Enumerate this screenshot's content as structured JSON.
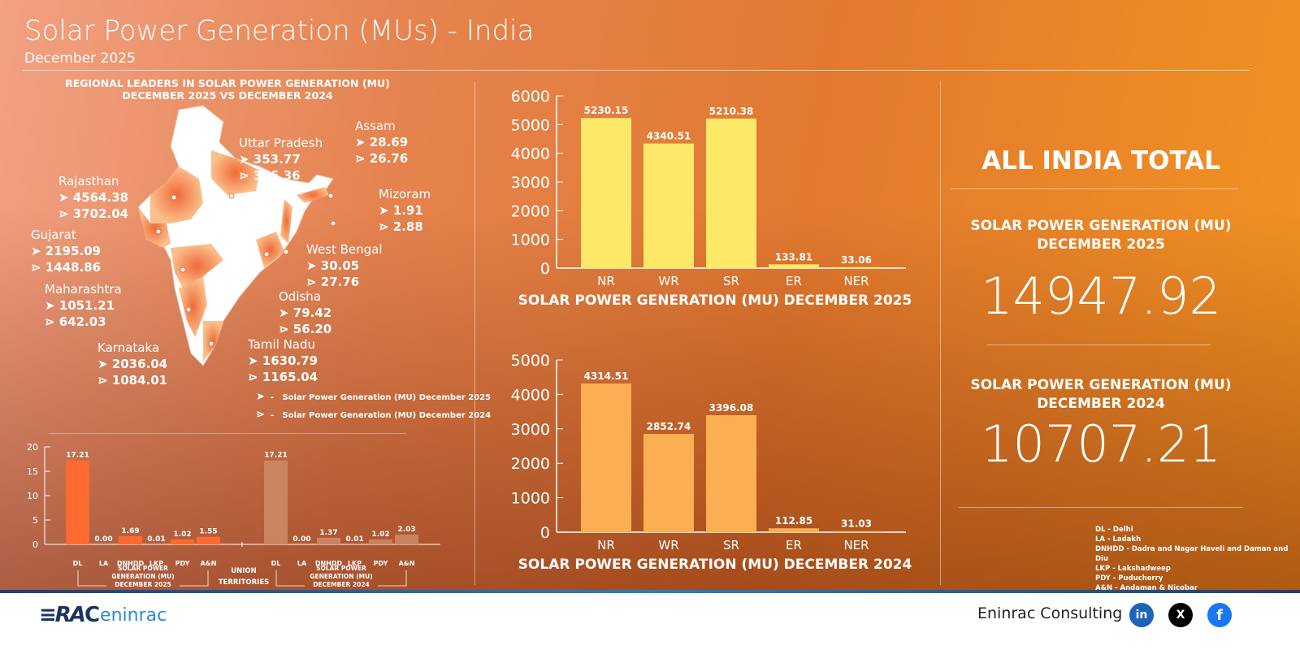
{
  "header": {
    "title": "Solar Power Generation (MUs) - India",
    "subtitle": "December 2025"
  },
  "map": {
    "heading_line1": "REGIONAL LEADERS IN SOLAR POWER GENERATION (MU)",
    "heading_line2": "DECEMBER 2025 VS DECEMBER 2024",
    "states": [
      {
        "name": "Rajasthan",
        "v2025": "4564.38",
        "v2024": "3702.04"
      },
      {
        "name": "Gujarat",
        "v2025": "2195.09",
        "v2024": "1448.86"
      },
      {
        "name": "Maharashtra",
        "v2025": "1051.21",
        "v2024": "642.03"
      },
      {
        "name": "Karnataka",
        "v2025": "2036.04",
        "v2024": "1084.01"
      },
      {
        "name": "Uttar Pradesh",
        "v2025": "353.77",
        "v2024": "356.36"
      },
      {
        "name": "Assam",
        "v2025": "28.69",
        "v2024": "26.76"
      },
      {
        "name": "Mizoram",
        "v2025": "1.91",
        "v2024": "2.88"
      },
      {
        "name": "West Bengal",
        "v2025": "30.05",
        "v2024": "27.76"
      },
      {
        "name": "Odisha",
        "v2025": "79.42",
        "v2024": "56.20"
      },
      {
        "name": "Tamil Nadu",
        "v2025": "1630.79",
        "v2024": "1165.04"
      }
    ],
    "legend": [
      {
        "icon": "solid-arrow-icon",
        "label": "Solar Power Generation (MU) December 2025"
      },
      {
        "icon": "outline-arrow-icon",
        "label": "Solar Power Generation (MU) December 2024"
      }
    ],
    "colors": {
      "state_fill": "#f07a45",
      "map_base": "#ffffff"
    }
  },
  "chart_data": [
    {
      "type": "bar",
      "title": "SOLAR POWER GENERATION (MU) DECEMBER 2025",
      "categories": [
        "NR",
        "WR",
        "SR",
        "ER",
        "NER"
      ],
      "values": [
        5230.15,
        4340.51,
        5210.38,
        133.81,
        33.06
      ],
      "ylim": [
        0,
        6000
      ],
      "yticks": [
        0,
        1000,
        2000,
        3000,
        4000,
        5000,
        6000
      ],
      "color": "#fde868"
    },
    {
      "type": "bar",
      "title": "SOLAR POWER GENERATION (MU) DECEMBER 2024",
      "categories": [
        "NR",
        "WR",
        "SR",
        "ER",
        "NER"
      ],
      "values": [
        4314.51,
        2852.74,
        3396.08,
        112.85,
        31.03
      ],
      "ylim": [
        0,
        5000
      ],
      "yticks": [
        0,
        1000,
        2000,
        3000,
        4000,
        5000
      ],
      "color": "#fcae52"
    },
    {
      "type": "bar",
      "title": "",
      "group_label": "UNION TERRITORIES",
      "ylim": [
        0,
        20
      ],
      "yticks": [
        0,
        5,
        10,
        15,
        20
      ],
      "groups": [
        {
          "name": "SOLAR POWER GENERATION (MU) DECEMBER 2025",
          "categories": [
            "DL",
            "LA",
            "DNHDD",
            "LKP",
            "PDY",
            "A&N"
          ],
          "values": [
            17.21,
            0.0,
            1.69,
            0.01,
            1.02,
            1.55
          ],
          "labels": [
            "17.21",
            "0.00",
            "1.69",
            "0.01",
            "1.02",
            "1.55"
          ],
          "color": "#ff6a30"
        },
        {
          "name": "SOLAR POWER GENERATION (MU) DECEMBER 2024",
          "categories": [
            "DL",
            "LA",
            "DNHDD",
            "LKP",
            "PDY",
            "A&N"
          ],
          "values": [
            17.21,
            0.0,
            1.37,
            0.01,
            1.02,
            2.03
          ],
          "labels": [
            "17.21",
            "0.00",
            "1.37",
            "0.01",
            "1.02",
            "2.03"
          ],
          "color": "#c98461"
        }
      ]
    }
  ],
  "summary": {
    "heading": "ALL INDIA TOTAL",
    "label2025_l1": "SOLAR POWER GENERATION (MU)",
    "label2025_l2": "DECEMBER 2025",
    "total2025": "14947.92",
    "label2024_l1": "SOLAR POWER GENERATION (MU)",
    "label2024_l2": "DECEMBER 2024",
    "total2024": "10707.21"
  },
  "abbreviations": [
    "DL - Delhi",
    "LA - Ladakh",
    "DNHDD - Dadra and Nagar Haveli and Daman and Diu",
    "LKP - Lakshadweep",
    "PDY - Puducherry",
    "A&N - Andaman & Nicobar"
  ],
  "footer": {
    "logo_text": "RAC eninrac",
    "company": "Eninrac Consulting",
    "social": [
      {
        "icon": "linkedin-icon",
        "label": "in",
        "color": "#1d63b8"
      },
      {
        "icon": "x-icon",
        "label": "X",
        "color": "#000000"
      },
      {
        "icon": "facebook-icon",
        "label": "f",
        "color": "#1877f2"
      }
    ]
  }
}
